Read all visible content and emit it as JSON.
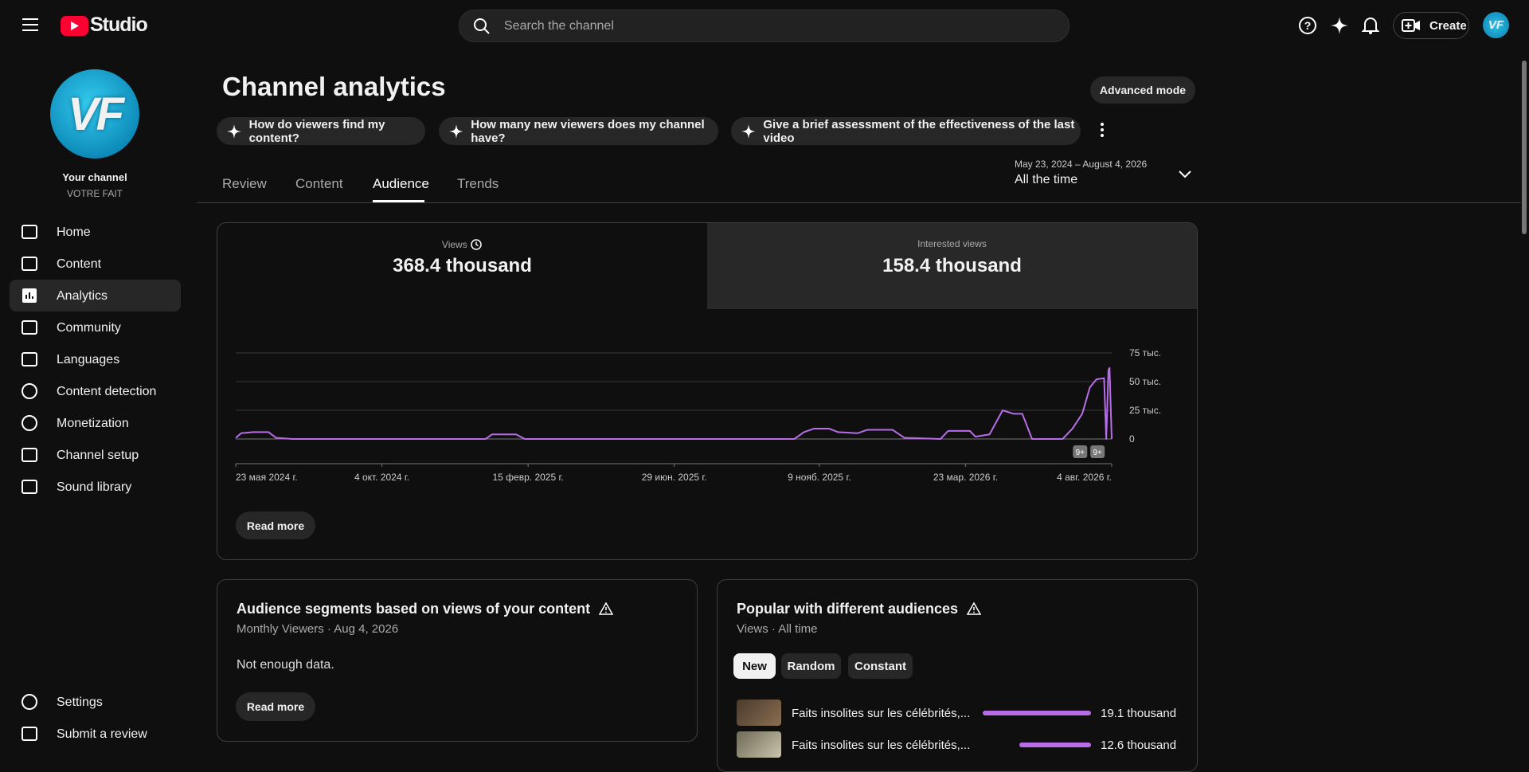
{
  "header": {
    "logo": "Studio",
    "search_placeholder": "Search the channel",
    "create": "Create",
    "avatar": "VF"
  },
  "sidebar": {
    "avatar": "VF",
    "channel_label": "Your channel",
    "channel_name": "VOTRE FAIT",
    "nav": [
      "Home",
      "Content",
      "Analytics",
      "Community",
      "Languages",
      "Content detection",
      "Monetization",
      "Channel setup",
      "Sound library"
    ],
    "footer_nav": [
      "Settings",
      "Submit a review"
    ]
  },
  "page": {
    "title": "Channel analytics",
    "advanced_mode": "Advanced mode",
    "prompts": [
      "How do viewers find my content?",
      "How many new viewers does my channel have?",
      "Give a brief assessment of the effectiveness of the last video"
    ],
    "tabs": [
      "Review",
      "Content",
      "Audience",
      "Trends"
    ],
    "date_range": "May 23, 2024 – August 4, 2026",
    "period": "All the time"
  },
  "metrics": [
    {
      "label": "Views",
      "value": "368.4 thousand"
    },
    {
      "label": "Interested views",
      "value": "158.4 thousand"
    }
  ],
  "chart_data": {
    "type": "line",
    "x": [
      "2024-05-23",
      "2024-05-28",
      "2024-06-08",
      "2024-06-22",
      "2024-06-29",
      "2024-07-14",
      "2025-01-07",
      "2025-01-13",
      "2025-02-04",
      "2025-02-12",
      "2025-10-17",
      "2025-10-26",
      "2025-11-04",
      "2025-11-18",
      "2025-11-26",
      "2025-12-14",
      "2025-12-23",
      "2026-01-15",
      "2026-01-26",
      "2026-02-28",
      "2026-03-07",
      "2026-03-27",
      "2026-04-01",
      "2026-04-14",
      "2026-04-26",
      "2026-05-06",
      "2026-05-14",
      "2026-05-23",
      "2026-06-20",
      "2026-06-29",
      "2026-07-08",
      "2026-07-15",
      "2026-07-21",
      "2026-07-28",
      "2026-07-30",
      "2026-08-01",
      "2026-08-02",
      "2026-08-04"
    ],
    "series": [
      {
        "color": "#b86ce8",
        "values": [
          1000,
          5000,
          6000,
          6000,
          1000,
          0,
          0,
          4000,
          4000,
          0,
          0,
          6000,
          9000,
          9000,
          6000,
          5000,
          8000,
          8000,
          1000,
          0,
          7000,
          7000,
          2000,
          4000,
          25000,
          22000,
          22000,
          0,
          0,
          9000,
          22000,
          45000,
          52000,
          53000,
          0,
          60000,
          62000,
          0
        ]
      }
    ],
    "xlim": [
      "2024-05-23",
      "2026-08-04"
    ],
    "xticks": [
      {
        "value": "2024-05-23",
        "label": "23 мая 2024 г."
      },
      {
        "value": "2024-10-04",
        "label": "4 окт. 2024 г."
      },
      {
        "value": "2025-02-15",
        "label": "15 февр. 2025 г."
      },
      {
        "value": "2025-06-29",
        "label": "29 июн. 2025 г."
      },
      {
        "value": "2025-11-09",
        "label": "9 нояб. 2025 г."
      },
      {
        "value": "2026-03-23",
        "label": "23 мар. 2026 г."
      },
      {
        "value": "2026-08-04",
        "label": "4 авг. 2026 г."
      }
    ],
    "ylim": [
      0,
      75000
    ],
    "yticks": [
      0,
      {
        "value": 25000,
        "label": "25 тыс."
      },
      {
        "value": 50000,
        "label": "50 тыс."
      },
      {
        "value": 75000,
        "label": "75 тыс."
      }
    ],
    "grid": true,
    "annotations": [
      {
        "x": "2026-07-06",
        "label": "9+"
      },
      {
        "x": "2026-07-22",
        "label": "9+"
      }
    ]
  },
  "read_more": "Read more",
  "segments": {
    "title": "Audience segments based on views of your content",
    "subtitle": "Monthly Viewers · Aug 4, 2026",
    "message": "Not enough data.",
    "button": "Read more"
  },
  "popular": {
    "title": "Popular with different audiences",
    "subtitle": "Views · All time",
    "filters": [
      "New",
      "Random",
      "Constant"
    ],
    "titles": [
      "Faits insolites sur les célébrités,...",
      "Faits insolites sur les célébrités,..."
    ],
    "values": [
      19100,
      12600
    ],
    "value_labels": [
      "19.1 thousand",
      "12.6 thousand"
    ],
    "color": "#b86ce8"
  }
}
